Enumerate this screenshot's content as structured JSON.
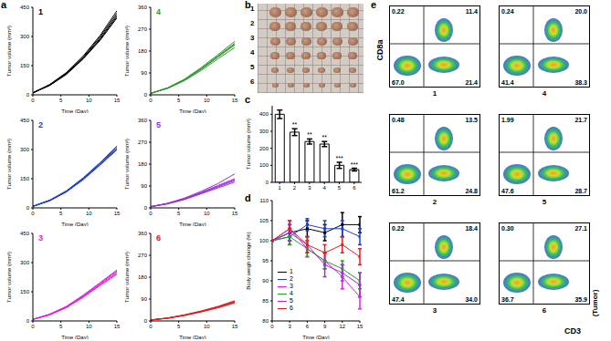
{
  "chart_data": [
    {
      "type": "line",
      "label": "a",
      "subplots": [
        {
          "title": "1",
          "color": "#000000",
          "x": [
            0,
            3,
            6,
            9,
            12,
            15
          ],
          "xlim": [
            0,
            15
          ],
          "xticks": [
            0,
            5,
            10,
            15
          ],
          "ylim": [
            0,
            450
          ],
          "yticks": [
            0,
            150,
            300,
            450
          ],
          "x_label": "Time (Day)",
          "y_label": "Tumor volume (mm³)",
          "series": [
            {
              "values": [
                10,
                48,
                105,
                185,
                280,
                395
              ]
            },
            {
              "values": [
                10,
                50,
                110,
                190,
                290,
                410
              ]
            },
            {
              "values": [
                10,
                52,
                112,
                195,
                298,
                420
              ]
            },
            {
              "values": [
                10,
                49,
                108,
                188,
                285,
                402
              ]
            },
            {
              "values": [
                10,
                53,
                115,
                200,
                305,
                432
              ]
            }
          ]
        },
        {
          "title": "4",
          "color": "#2e9a2e",
          "x": [
            0,
            3,
            6,
            9,
            12,
            15
          ],
          "xlim": [
            0,
            15
          ],
          "xticks": [
            0,
            5,
            10,
            15
          ],
          "ylim": [
            0,
            360
          ],
          "yticks": [
            0,
            90,
            180,
            270,
            360
          ],
          "x_label": "Time (Day)",
          "y_label": "Tumor volume (mm³)",
          "series": [
            {
              "values": [
                6,
                28,
                62,
                108,
                160,
                212
              ]
            },
            {
              "values": [
                6,
                27,
                60,
                105,
                155,
                205
              ]
            },
            {
              "values": [
                6,
                29,
                64,
                112,
                165,
                220
              ]
            },
            {
              "values": [
                6,
                26,
                58,
                100,
                148,
                195
              ]
            },
            {
              "values": [
                6,
                28,
                61,
                106,
                158,
                208
              ]
            }
          ]
        },
        {
          "title": "2",
          "color": "#1f3fd0",
          "x": [
            0,
            3,
            6,
            9,
            12,
            15
          ],
          "xlim": [
            0,
            15
          ],
          "xticks": [
            0,
            5,
            10,
            15
          ],
          "ylim": [
            0,
            450
          ],
          "yticks": [
            0,
            150,
            300,
            450
          ],
          "x_label": "Time (Day)",
          "y_label": "Tumor volume (mm³)",
          "series": [
            {
              "values": [
                8,
                36,
                82,
                145,
                220,
                298
              ]
            },
            {
              "values": [
                8,
                38,
                85,
                150,
                226,
                306
              ]
            },
            {
              "values": [
                8,
                39,
                87,
                153,
                230,
                312
              ]
            },
            {
              "values": [
                8,
                37,
                84,
                148,
                224,
                303
              ]
            },
            {
              "values": [
                8,
                40,
                88,
                155,
                233,
                318
              ]
            }
          ]
        },
        {
          "title": "5",
          "color": "#9a30d8",
          "x": [
            0,
            3,
            6,
            9,
            12,
            15
          ],
          "xlim": [
            0,
            15
          ],
          "xticks": [
            0,
            5,
            10,
            15
          ],
          "ylim": [
            0,
            360
          ],
          "yticks": [
            0,
            90,
            180,
            270,
            360
          ],
          "x_label": "Time (Day)",
          "y_label": "Tumor volume (mm³)",
          "series": [
            {
              "values": [
                5,
                18,
                38,
                64,
                92,
                120
              ]
            },
            {
              "values": [
                5,
                17,
                36,
                60,
                86,
                112
              ]
            },
            {
              "values": [
                5,
                19,
                40,
                68,
                100,
                140
              ]
            },
            {
              "values": [
                5,
                16,
                34,
                58,
                82,
                106
              ]
            },
            {
              "values": [
                5,
                18,
                37,
                62,
                89,
                116
              ]
            }
          ]
        },
        {
          "title": "3",
          "color": "#e020e0",
          "x": [
            0,
            3,
            6,
            9,
            12,
            15
          ],
          "xlim": [
            0,
            15
          ],
          "xticks": [
            0,
            5,
            10,
            15
          ],
          "ylim": [
            0,
            450
          ],
          "yticks": [
            0,
            150,
            300,
            450
          ],
          "x_label": "Time (Day)",
          "y_label": "Tumor volume (mm³)",
          "series": [
            {
              "values": [
                8,
                32,
                70,
                125,
                185,
                245
              ]
            },
            {
              "values": [
                8,
                33,
                72,
                128,
                190,
                252
              ]
            },
            {
              "values": [
                8,
                34,
                74,
                131,
                194,
                258
              ]
            },
            {
              "values": [
                8,
                31,
                69,
                122,
                182,
                240
              ]
            },
            {
              "values": [
                8,
                35,
                75,
                133,
                197,
                262
              ]
            }
          ]
        },
        {
          "title": "6",
          "color": "#e02020",
          "x": [
            0,
            3,
            6,
            9,
            12,
            15
          ],
          "xlim": [
            0,
            15
          ],
          "xticks": [
            0,
            5,
            10,
            15
          ],
          "ylim": [
            0,
            360
          ],
          "yticks": [
            0,
            90,
            180,
            270,
            360
          ],
          "x_label": "Time (Day)",
          "y_label": "Tumor volume (mm³)",
          "series": [
            {
              "values": [
                4,
                12,
                24,
                40,
                58,
                80
              ]
            },
            {
              "values": [
                4,
                11,
                23,
                38,
                56,
                77
              ]
            },
            {
              "values": [
                4,
                12,
                25,
                41,
                60,
                83
              ]
            },
            {
              "values": [
                4,
                11,
                22,
                37,
                54,
                74
              ]
            },
            {
              "values": [
                4,
                12,
                24,
                39,
                57,
                79
              ]
            }
          ]
        }
      ]
    },
    {
      "type": "image",
      "label": "b",
      "row_labels": [
        "1",
        "2",
        "3",
        "4",
        "5",
        "6"
      ]
    },
    {
      "type": "bar",
      "label": "c",
      "categories": [
        "1",
        "2",
        "3",
        "4",
        "5",
        "6"
      ],
      "values": [
        400,
        295,
        240,
        225,
        100,
        75
      ],
      "errors": [
        25,
        20,
        15,
        15,
        18,
        8
      ],
      "significance": [
        null,
        "**",
        "**",
        "**",
        "***",
        "***"
      ],
      "ylim": [
        0,
        450
      ],
      "yticks": [
        0,
        100,
        200,
        300,
        400
      ],
      "y_label": "Tumor volume (mm³)",
      "color": "#ffffff"
    },
    {
      "type": "line",
      "label": "d",
      "x": [
        0,
        3,
        6,
        9,
        12,
        15
      ],
      "xlim": [
        0,
        15
      ],
      "xticks": [
        0,
        3,
        6,
        9,
        12,
        15
      ],
      "ylim": [
        80,
        110
      ],
      "yticks": [
        80,
        85,
        90,
        95,
        100,
        105,
        110
      ],
      "x_label": "Time (Day)",
      "y_label": "Body weigh change (%)",
      "legend": "lower left",
      "marker": "square",
      "series": [
        {
          "name": "1",
          "color": "#000000",
          "values": [
            100,
            102,
            103,
            102,
            104,
            104
          ],
          "errors": [
            0,
            2,
            2,
            2,
            3,
            2
          ]
        },
        {
          "name": "2",
          "color": "#1f3fd0",
          "values": [
            100,
            101,
            104,
            103,
            103,
            101
          ],
          "errors": [
            0,
            2,
            1.5,
            2,
            2,
            2
          ]
        },
        {
          "name": "3",
          "color": "#e020e0",
          "values": [
            100,
            103,
            98,
            95,
            91,
            86
          ],
          "errors": [
            0,
            2,
            2,
            2,
            3,
            3
          ]
        },
        {
          "name": "4",
          "color": "#2e9a2e",
          "values": [
            100,
            101,
            98,
            95,
            93,
            90
          ],
          "errors": [
            0,
            2,
            2,
            2,
            2,
            2
          ]
        },
        {
          "name": "5",
          "color": "#9a30d8",
          "values": [
            100,
            102,
            99,
            94,
            92,
            89
          ],
          "errors": [
            0,
            2,
            2,
            3,
            2,
            3
          ]
        },
        {
          "name": "6",
          "color": "#e02020",
          "values": [
            100,
            103,
            99,
            97,
            99,
            96
          ],
          "errors": [
            0,
            2,
            2,
            2,
            2,
            2
          ]
        }
      ]
    },
    {
      "type": "flow_cytometry",
      "label": "e",
      "x_label": "CD3",
      "x_label_note": "(Tumor)",
      "y_label": "CD8a",
      "plots": [
        {
          "title": "1",
          "values": [
            0.22,
            11.4,
            67.0,
            21.4
          ],
          "value_labels": [
            "0.22",
            "11.4",
            "67.0",
            "21.4"
          ]
        },
        {
          "title": "4",
          "values": [
            0.24,
            20.0,
            41.4,
            38.3
          ],
          "value_labels": [
            "0.24",
            "20.0",
            "41.4",
            "38.3"
          ]
        },
        {
          "title": "2",
          "values": [
            0.48,
            13.5,
            61.2,
            24.8
          ],
          "value_labels": [
            "0.48",
            "13.5",
            "61.2",
            "24.8"
          ]
        },
        {
          "title": "5",
          "values": [
            1.99,
            21.7,
            47.6,
            28.7
          ],
          "value_labels": [
            "1.99",
            "21.7",
            "47.6",
            "28.7"
          ]
        },
        {
          "title": "3",
          "values": [
            0.22,
            18.4,
            47.4,
            34.0
          ],
          "value_labels": [
            "0.22",
            "18.4",
            "47.4",
            "34.0"
          ]
        },
        {
          "title": "6",
          "values": [
            0.3,
            27.1,
            36.7,
            35.9
          ],
          "value_labels": [
            "0.30",
            "27.1",
            "36.7",
            "35.9"
          ]
        }
      ]
    }
  ]
}
